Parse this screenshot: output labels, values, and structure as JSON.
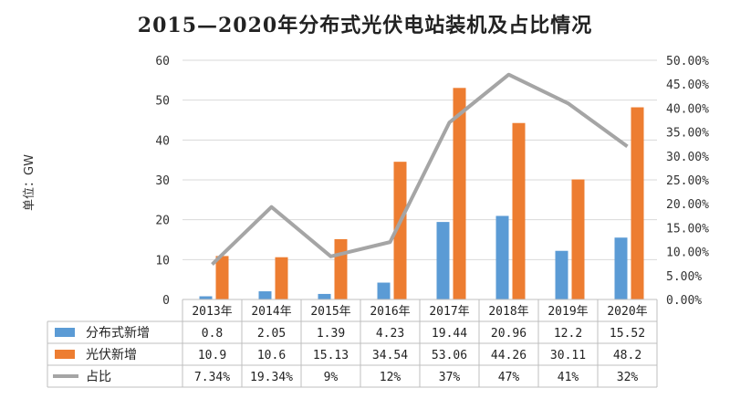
{
  "chart_data": {
    "type": "bar",
    "title": "2015—2020年分布式光伏电站装机及占比情况",
    "ylabel": "单位：GW",
    "categories": [
      "2013年",
      "2014年",
      "2015年",
      "2016年",
      "2017年",
      "2018年",
      "2019年",
      "2020年"
    ],
    "ylim": [
      0,
      60
    ],
    "y_ticks": [
      "0",
      "10",
      "20",
      "30",
      "40",
      "50",
      "60"
    ],
    "y2lim": [
      0,
      50
    ],
    "y2_ticks": [
      "0.00%",
      "5.00%",
      "10.00%",
      "15.00%",
      "20.00%",
      "25.00%",
      "30.00%",
      "35.00%",
      "40.00%",
      "45.00%",
      "50.00%"
    ],
    "grid": true,
    "legend": "data-table",
    "series": [
      {
        "name": "分布式新增",
        "type": "bar",
        "axis": "left",
        "color": "#5b9bd5",
        "values": [
          0.8,
          2.05,
          1.39,
          4.23,
          19.44,
          20.96,
          12.2,
          15.52
        ],
        "labels": [
          "0.8",
          "2.05",
          "1.39",
          "4.23",
          "19.44",
          "20.96",
          "12.2",
          "15.52"
        ]
      },
      {
        "name": "光伏新增",
        "type": "bar",
        "axis": "left",
        "color": "#ed7d31",
        "values": [
          10.9,
          10.6,
          15.13,
          34.54,
          53.06,
          44.26,
          30.11,
          48.2
        ],
        "labels": [
          "10.9",
          "10.6",
          "15.13",
          "34.54",
          "53.06",
          "44.26",
          "30.11",
          "48.2"
        ]
      },
      {
        "name": "占比",
        "type": "line",
        "axis": "right",
        "color": "#a5a5a5",
        "values": [
          7.34,
          19.34,
          9,
          12,
          37,
          47,
          41,
          32
        ],
        "labels": [
          "7.34%",
          "19.34%",
          "9%",
          "12%",
          "37%",
          "47%",
          "41%",
          "32%"
        ]
      }
    ]
  }
}
